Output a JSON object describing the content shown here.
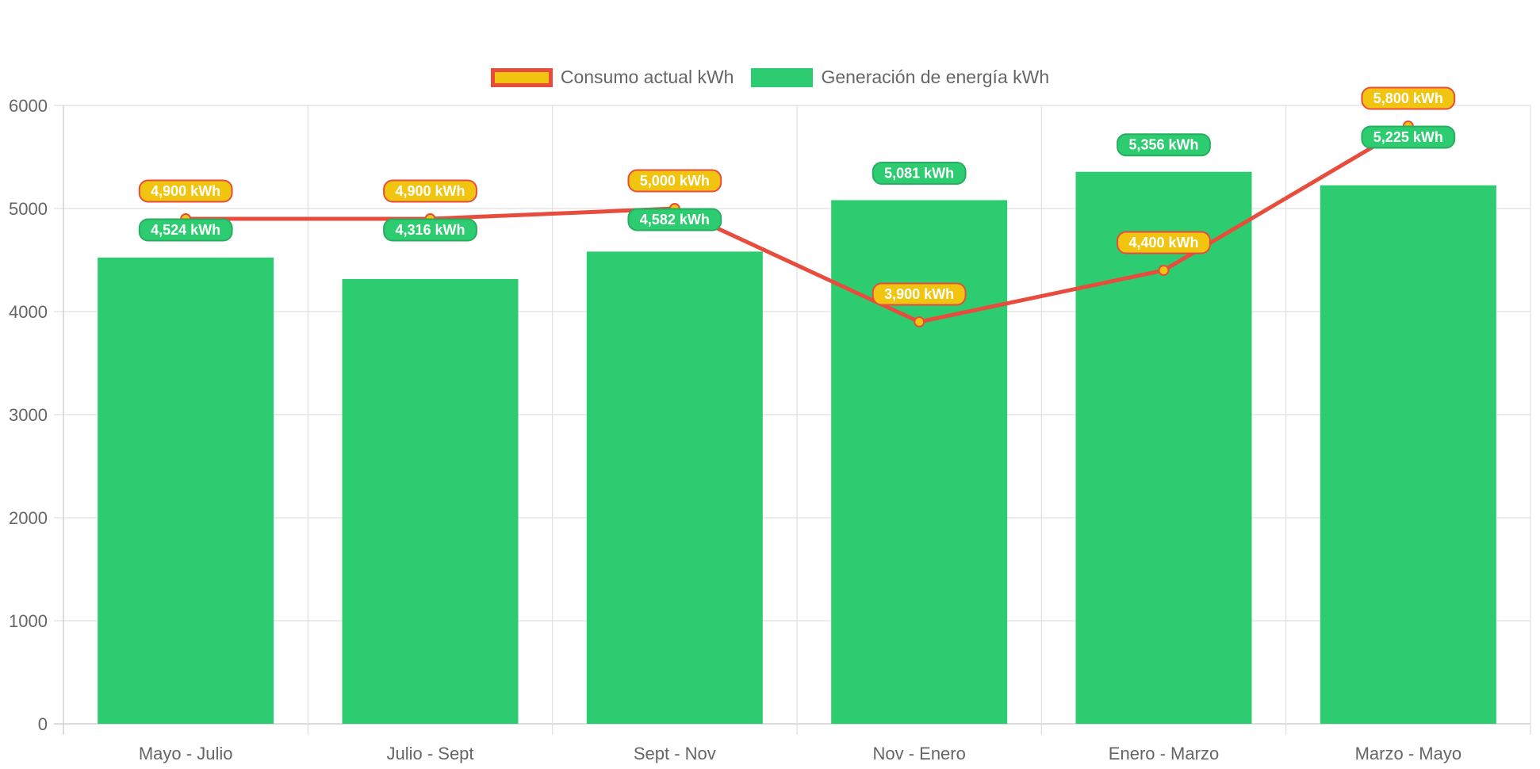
{
  "chart_data": {
    "type": "bar",
    "categories": [
      "Mayo - Julio",
      "Julio - Sept",
      "Sept - Nov",
      "Nov - Enero",
      "Enero - Marzo",
      "Marzo - Mayo"
    ],
    "series": [
      {
        "name": "Consumo actual kWh",
        "type": "line",
        "values": [
          4900,
          4900,
          5000,
          3900,
          4400,
          5800
        ],
        "labels": [
          "4,900 kWh",
          "4,900 kWh",
          "5,000 kWh",
          "3,900 kWh",
          "4,400 kWh",
          "5,800 kWh"
        ],
        "color": "#e74c3c",
        "fill": "#f1c40f"
      },
      {
        "name": "Generación de energía kWh",
        "type": "bar",
        "values": [
          4524,
          4316,
          4582,
          5081,
          5356,
          5225
        ],
        "labels": [
          "4,524 kWh",
          "4,316 kWh",
          "4,582 kWh",
          "5,081 kWh",
          "5,356 kWh",
          "5,225 kWh"
        ],
        "color": "#2ecc71",
        "label_color": "#27ae60"
      }
    ],
    "y_ticks": [
      "0",
      "1000",
      "2000",
      "3000",
      "4000",
      "5000",
      "6000"
    ],
    "ylim": [
      0,
      6000
    ],
    "grid": true,
    "legend_position": "top-center",
    "title": "",
    "xlabel": "",
    "ylabel": ""
  }
}
